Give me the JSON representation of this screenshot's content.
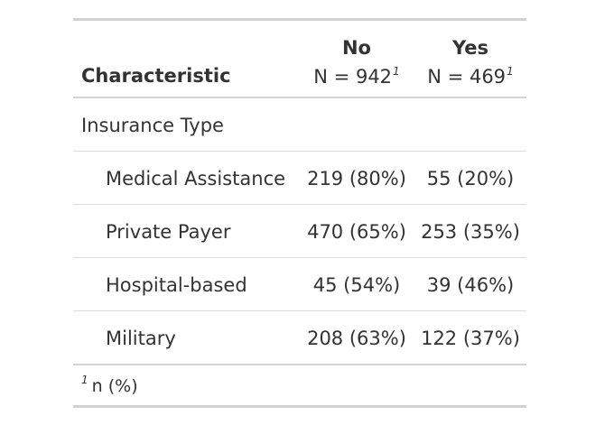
{
  "table": {
    "header": {
      "characteristic": "Characteristic",
      "columns": [
        {
          "level": "No",
          "n": "N = 942",
          "footnote_mark": "1"
        },
        {
          "level": "Yes",
          "n": "N = 469",
          "footnote_mark": "1"
        }
      ]
    },
    "group_label": "Insurance Type",
    "rows": [
      {
        "label": "Medical Assistance",
        "no": "219 (80%)",
        "yes": "55 (20%)"
      },
      {
        "label": "Private Payer",
        "no": "470 (65%)",
        "yes": "253 (35%)"
      },
      {
        "label": "Hospital-based",
        "no": "45 (54%)",
        "yes": "39 (46%)"
      },
      {
        "label": "Military",
        "no": "208 (63%)",
        "yes": "122 (37%)"
      }
    ],
    "footnote": {
      "mark": "1",
      "text": "n (%)"
    }
  }
}
